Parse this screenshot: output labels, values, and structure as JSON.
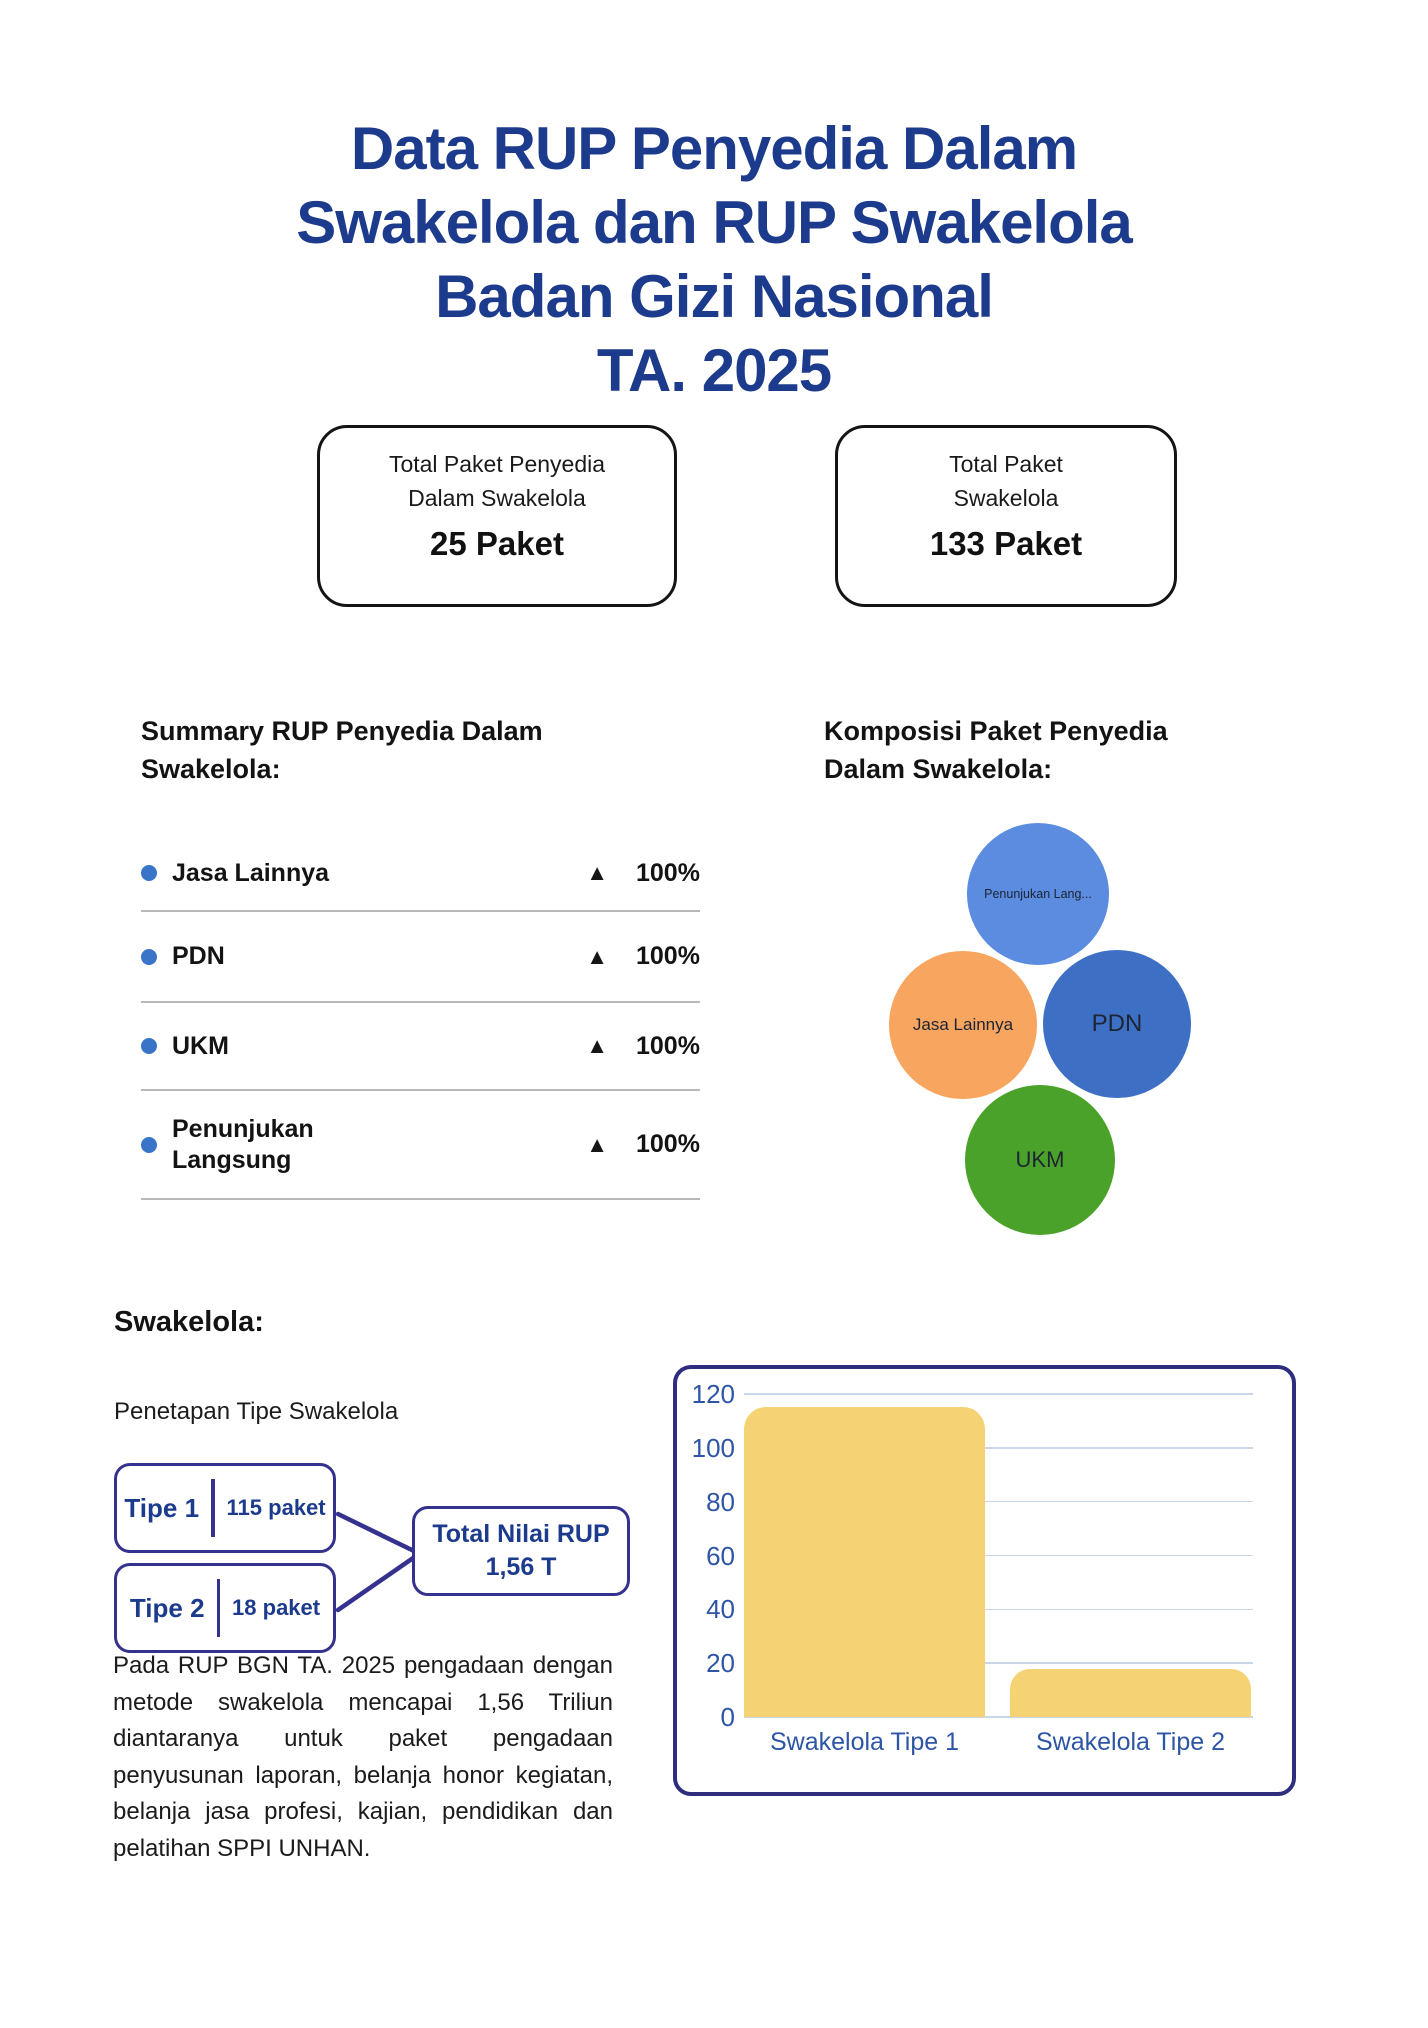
{
  "colors": {
    "title_blue": "#1d3b8c",
    "body_text": "#1b1b1b",
    "stat_card_border": "#141414",
    "bullet_blue": "#3a74c9",
    "list_divider_gray": "#b9b9b9",
    "triangle_black": "#161616",
    "diagram_border_indigo": "#35318e",
    "diagram_text_navy": "#1d3b8c",
    "chart_border_indigo": "#2f2d7e",
    "axis_label_blue": "#2e55a5",
    "gridline_blue": "#c9d6ea",
    "bar_fill_yellow": "#f5d273",
    "bubble_light_blue": "#5c8ce0",
    "bubble_orange": "#f8a55f",
    "bubble_blue": "#3d70c5",
    "bubble_green": "#4aa22a"
  },
  "title": {
    "text": "Data RUP Penyedia Dalam\nSwakelola dan RUP Swakelola\nBadan Gizi Nasional\nTA. 2025"
  },
  "stat_cards": [
    {
      "label": "Total Paket Penyedia\nDalam Swakelola",
      "value": "25 Paket"
    },
    {
      "label": "Total Paket\nSwakelola",
      "value": "133 Paket"
    }
  ],
  "summary": {
    "heading": "Summary RUP Penyedia Dalam\nSwakelola:",
    "items": [
      {
        "label": "Jasa Lainnya",
        "indicator": "▲",
        "value": "100%"
      },
      {
        "label": "PDN",
        "indicator": "▲",
        "value": "100%"
      },
      {
        "label": "UKM",
        "indicator": "▲",
        "value": "100%"
      },
      {
        "label": "Penunjukan\nLangsung",
        "indicator": "▲",
        "value": "100%"
      }
    ]
  },
  "komposisi": {
    "heading": "Komposisi Paket Penyedia\nDalam Swakelola:"
  },
  "swakelola": {
    "heading": "Swakelola:",
    "subheading": "Penetapan Tipe Swakelola",
    "tipe_boxes": [
      {
        "name": "Tipe 1",
        "count": "115 paket"
      },
      {
        "name": "Tipe 2",
        "count": "18 paket"
      }
    ],
    "total_box": "Total Nilai RUP\n1,56 T"
  },
  "paragraph": "Pada RUP BGN TA. 2025 pengadaan dengan metode swakelola mencapai 1,56 Triliun diantaranya untuk paket pengadaan penyusunan laporan, belanja honor kegiatan, belanja jasa profesi, kajian, pendidikan dan pelatihan SPPI UNHAN.",
  "chart_data": [
    {
      "type": "bubble",
      "title": "Komposisi Paket Penyedia Dalam Swakelola",
      "bubbles": [
        {
          "label": "Penunjukan Lang...",
          "color": "#5c8ce0",
          "position": "top"
        },
        {
          "label": "Jasa Lainnya",
          "color": "#f8a55f",
          "position": "left"
        },
        {
          "label": "PDN",
          "color": "#3d70c5",
          "position": "right"
        },
        {
          "label": "UKM",
          "color": "#4aa22a",
          "position": "bottom"
        }
      ]
    },
    {
      "type": "bar",
      "categories": [
        "Swakelola Tipe 1",
        "Swakelola Tipe 2"
      ],
      "values": [
        115,
        18
      ],
      "title": "",
      "xlabel": "",
      "ylabel": "",
      "yticks": [
        120,
        100,
        80,
        60,
        40,
        20,
        0
      ],
      "ylim": [
        0,
        120
      ],
      "grid": true,
      "bar_color": "#f5d273",
      "axis_color": "#2e55a5",
      "grid_color": "#c9d6ea"
    }
  ]
}
